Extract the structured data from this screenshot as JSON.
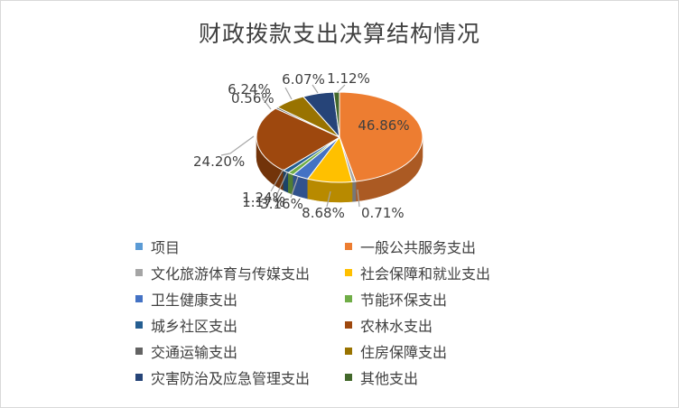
{
  "chart_data": {
    "type": "pie",
    "title": "财政拨款支出决算结构情况",
    "series": [
      {
        "name": "项目",
        "value": 0,
        "color": "#5b9bd5"
      },
      {
        "name": "一般公共服务支出",
        "value": 46.86,
        "label": "46.86%",
        "color": "#ed7d31"
      },
      {
        "name": "文化旅游体育与传媒支出",
        "value": 0.71,
        "label": "0.71%",
        "color": "#a5a5a5"
      },
      {
        "name": "社会保障和就业支出",
        "value": 8.68,
        "label": "8.68%",
        "color": "#ffc000"
      },
      {
        "name": "卫生健康支出",
        "value": 3.16,
        "label": "3.16%",
        "color": "#4472c4"
      },
      {
        "name": "节能环保支出",
        "value": 1.17,
        "label": "1.17%",
        "color": "#70ad47"
      },
      {
        "name": "城乡社区支出",
        "value": 1.24,
        "label": "1.24%",
        "color": "#255e91"
      },
      {
        "name": "农林水支出",
        "value": 24.2,
        "label": "24.20%",
        "color": "#9e480e"
      },
      {
        "name": "交通运输支出",
        "value": 0.56,
        "label": "0.56%",
        "color": "#636363"
      },
      {
        "name": "住房保障支出",
        "value": 6.24,
        "label": "6.24%",
        "color": "#997300"
      },
      {
        "name": "灾害防治及应急管理支出",
        "value": 6.07,
        "label": "6.07%",
        "color": "#264478"
      },
      {
        "name": "其他支出",
        "value": 1.12,
        "label": "1.12%",
        "color": "#43682b"
      }
    ],
    "legend_position": "bottom"
  }
}
